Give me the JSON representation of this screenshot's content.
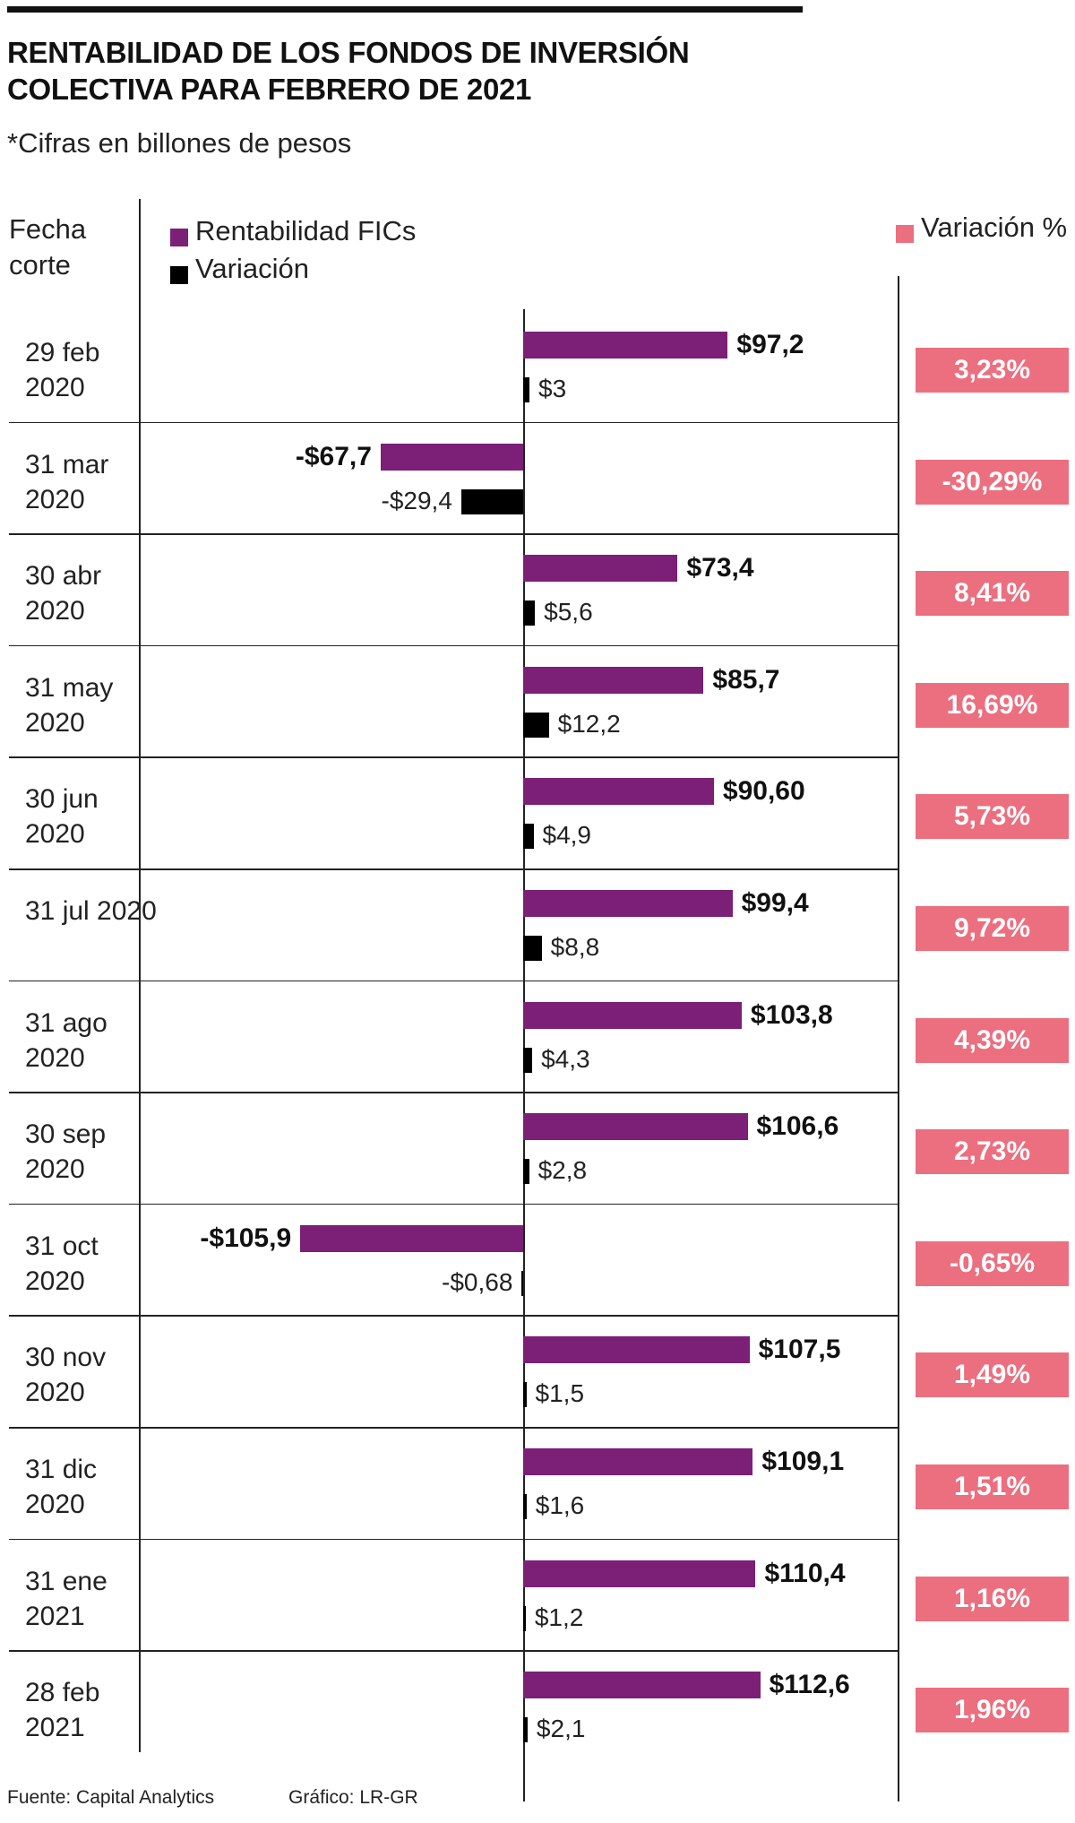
{
  "chart_data": {
    "type": "bar",
    "title": "RENTABILIDAD DE LOS FONDOS DE INVERSIÓN COLECTIVA PARA FEBRERO DE 2021",
    "subtitle": "*Cifras en billones de pesos",
    "category_header": "Fecha corte",
    "categories": [
      "29 feb 2020",
      "31 mar 2020",
      "30 abr 2020",
      "31 may 2020",
      "30 jun 2020",
      "31 jul 2020",
      "31 ago 2020",
      "30 sep 2020",
      "31 oct 2020",
      "30 nov 2020",
      "31 dic 2020",
      "31 ene 2021",
      "28 feb 2021"
    ],
    "series": [
      {
        "name": "Rentabilidad FICs",
        "color": "#7b1f77",
        "values": [
          97.2,
          -67.7,
          73.4,
          85.7,
          90.6,
          99.4,
          103.8,
          106.6,
          -105.9,
          107.5,
          109.1,
          110.4,
          112.6
        ],
        "value_labels": [
          "$97,2",
          "-$67,7",
          "$73,4",
          "$85,7",
          "$90,60",
          "$99,4",
          "$103,8",
          "$106,6",
          "-$105,9",
          "$107,5",
          "$109,1",
          "$110,4",
          "$112,6"
        ]
      },
      {
        "name": "Variación",
        "color": "#000000",
        "values": [
          3,
          -29.4,
          5.6,
          12.2,
          4.9,
          8.8,
          4.3,
          2.8,
          -0.68,
          1.5,
          1.6,
          1.2,
          2.1
        ],
        "value_labels": [
          "$3",
          "-$29,4",
          "$5,6",
          "$12,2",
          "$4,9",
          "$8,8",
          "$4,3",
          "$2,8",
          "-$0,68",
          "$1,5",
          "$1,6",
          "$1,2",
          "$2,1"
        ]
      },
      {
        "name": "Variación %",
        "color": "#ec6f7f",
        "values": [
          3.23,
          -30.29,
          8.41,
          16.69,
          5.73,
          9.72,
          4.39,
          2.73,
          -0.65,
          1.49,
          1.51,
          1.16,
          1.96
        ],
        "value_labels": [
          "3,23%",
          "-30,29%",
          "8,41%",
          "16,69%",
          "5,73%",
          "9,72%",
          "4,39%",
          "2,73%",
          "-0,65%",
          "1,49%",
          "1,51%",
          "1,16%",
          "1,96%"
        ]
      }
    ],
    "source": "Fuente: Capital Analytics",
    "credit": "Gráfico: LR-GR"
  }
}
